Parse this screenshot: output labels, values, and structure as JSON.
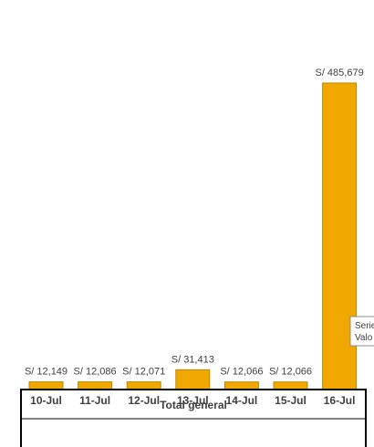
{
  "chart_data": {
    "type": "bar",
    "categories": [
      "10-Jul",
      "11-Jul",
      "12-Jul",
      "13-Jul",
      "14-Jul",
      "15-Jul",
      "16-Jul"
    ],
    "values": [
      12149,
      12086,
      12071,
      31413,
      12066,
      12066,
      485679
    ],
    "data_labels": [
      "S/ 12,149",
      "S/ 12,086",
      "S/ 12,071",
      "S/ 31,413",
      "S/ 12,066",
      "S/ 12,066",
      "S/ 485,679"
    ],
    "group_label": "Total general",
    "title": "",
    "xlabel": "",
    "ylabel": "",
    "bar_color": "#F0A800",
    "grid": false,
    "legend": "none"
  },
  "tooltip": {
    "line1": "Serie",
    "line2": "Valo"
  }
}
